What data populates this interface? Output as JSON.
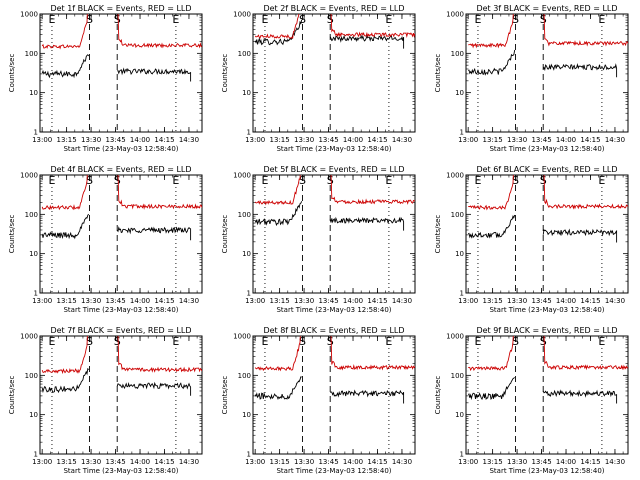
{
  "chart_data": [
    {
      "type": "line",
      "title": "Det 1f BLACK = Events, RED = LLD",
      "xlabel": "Start Time (23-May-03 12:58:40)",
      "ylabel": "Counts/sec",
      "yscale": "log",
      "ylim": [
        1,
        1000
      ],
      "xlim": [
        "12:58:40",
        "14:38:00"
      ],
      "x_ticks": [
        "13:00",
        "13:15",
        "13:30",
        "13:45",
        "14:00",
        "14:15",
        "14:30"
      ],
      "y_ticks": [
        "1",
        "10",
        "100",
        "1000"
      ],
      "markers": [
        {
          "label": "E",
          "time": "13:06"
        },
        {
          "label": "S",
          "time": "13:29"
        },
        {
          "label": "S",
          "time": "13:46"
        },
        {
          "label": "E",
          "time": "14:22"
        }
      ],
      "series": [
        {
          "name": "Events",
          "color": "#000000",
          "pre_level": 30,
          "post_level": 35,
          "rise_start": "13:21",
          "end": "14:31"
        },
        {
          "name": "LLD",
          "color": "#cc0000",
          "pre_level": 150,
          "post_level": 160,
          "end": "14:38"
        }
      ]
    },
    {
      "type": "line",
      "title": "Det 2f BLACK = Events, RED = LLD",
      "xlabel": "Start Time (23-May-03 12:58:40)",
      "ylabel": "Counts/sec",
      "yscale": "log",
      "ylim": [
        1,
        1000
      ],
      "xlim": [
        "12:58:40",
        "14:38:00"
      ],
      "x_ticks": [
        "13:00",
        "13:15",
        "13:30",
        "13:45",
        "14:00",
        "14:15",
        "14:30"
      ],
      "y_ticks": [
        "1",
        "10",
        "100",
        "1000"
      ],
      "markers": [
        {
          "label": "E",
          "time": "13:06"
        },
        {
          "label": "S",
          "time": "13:29"
        },
        {
          "label": "S",
          "time": "13:46"
        },
        {
          "label": "E",
          "time": "14:22"
        }
      ],
      "series": [
        {
          "name": "Events",
          "color": "#000000",
          "pre_level": 200,
          "post_level": 240,
          "rise_start": "13:21",
          "end": "14:31"
        },
        {
          "name": "LLD",
          "color": "#cc0000",
          "pre_level": 270,
          "post_level": 300,
          "end": "14:38"
        }
      ]
    },
    {
      "type": "line",
      "title": "Det 3f BLACK = Events, RED = LLD",
      "xlabel": "Start Time (23-May-03 12:58:40)",
      "ylabel": "Counts/sec",
      "yscale": "log",
      "ylim": [
        1,
        1000
      ],
      "xlim": [
        "12:58:40",
        "14:38:00"
      ],
      "x_ticks": [
        "13:00",
        "13:15",
        "13:30",
        "13:45",
        "14:00",
        "14:15",
        "14:30"
      ],
      "y_ticks": [
        "1",
        "10",
        "100",
        "1000"
      ],
      "markers": [
        {
          "label": "E",
          "time": "13:06"
        },
        {
          "label": "S",
          "time": "13:29"
        },
        {
          "label": "S",
          "time": "13:46"
        },
        {
          "label": "E",
          "time": "14:22"
        }
      ],
      "series": [
        {
          "name": "Events",
          "color": "#000000",
          "pre_level": 35,
          "post_level": 45,
          "rise_start": "13:21",
          "end": "14:31"
        },
        {
          "name": "LLD",
          "color": "#cc0000",
          "pre_level": 160,
          "post_level": 180,
          "end": "14:38"
        }
      ]
    },
    {
      "type": "line",
      "title": "Det 4f BLACK = Events, RED = LLD",
      "xlabel": "Start Time (23-May-03 12:58:40)",
      "ylabel": "Counts/sec",
      "yscale": "log",
      "ylim": [
        1,
        1000
      ],
      "xlim": [
        "12:58:40",
        "14:38:00"
      ],
      "x_ticks": [
        "13:00",
        "13:15",
        "13:30",
        "13:45",
        "14:00",
        "14:15",
        "14:30"
      ],
      "y_ticks": [
        "1",
        "10",
        "100",
        "1000"
      ],
      "markers": [
        {
          "label": "E",
          "time": "13:06"
        },
        {
          "label": "S",
          "time": "13:29"
        },
        {
          "label": "S",
          "time": "13:46"
        },
        {
          "label": "E",
          "time": "14:22"
        }
      ],
      "series": [
        {
          "name": "Events",
          "color": "#000000",
          "pre_level": 30,
          "post_level": 40,
          "rise_start": "13:21",
          "end": "14:31"
        },
        {
          "name": "LLD",
          "color": "#cc0000",
          "pre_level": 150,
          "post_level": 160,
          "end": "14:38"
        }
      ]
    },
    {
      "type": "line",
      "title": "Det 5f BLACK = Events, RED = LLD",
      "xlabel": "Start Time (23-May-03 12:58:40)",
      "ylabel": "Counts/sec",
      "yscale": "log",
      "ylim": [
        1,
        1000
      ],
      "xlim": [
        "12:58:40",
        "14:38:00"
      ],
      "x_ticks": [
        "13:00",
        "13:15",
        "13:30",
        "13:45",
        "14:00",
        "14:15",
        "14:30"
      ],
      "y_ticks": [
        "1",
        "10",
        "100",
        "1000"
      ],
      "markers": [
        {
          "label": "E",
          "time": "13:06"
        },
        {
          "label": "S",
          "time": "13:29"
        },
        {
          "label": "S",
          "time": "13:46"
        },
        {
          "label": "E",
          "time": "14:22"
        }
      ],
      "series": [
        {
          "name": "Events",
          "color": "#000000",
          "pre_level": 65,
          "post_level": 70,
          "rise_start": "13:21",
          "end": "14:31"
        },
        {
          "name": "LLD",
          "color": "#cc0000",
          "pre_level": 200,
          "post_level": 210,
          "end": "14:38"
        }
      ]
    },
    {
      "type": "line",
      "title": "Det 6f BLACK = Events, RED = LLD",
      "xlabel": "Start Time (23-May-03 12:58:40)",
      "ylabel": "Counts/sec",
      "yscale": "log",
      "ylim": [
        1,
        1000
      ],
      "xlim": [
        "12:58:40",
        "14:38:00"
      ],
      "x_ticks": [
        "13:00",
        "13:15",
        "13:30",
        "13:45",
        "14:00",
        "14:15",
        "14:30"
      ],
      "y_ticks": [
        "1",
        "10",
        "100",
        "1000"
      ],
      "markers": [
        {
          "label": "E",
          "time": "13:06"
        },
        {
          "label": "S",
          "time": "13:29"
        },
        {
          "label": "S",
          "time": "13:46"
        },
        {
          "label": "E",
          "time": "14:22"
        }
      ],
      "series": [
        {
          "name": "Events",
          "color": "#000000",
          "pre_level": 30,
          "post_level": 35,
          "rise_start": "13:21",
          "end": "14:31"
        },
        {
          "name": "LLD",
          "color": "#cc0000",
          "pre_level": 150,
          "post_level": 160,
          "end": "14:38"
        }
      ]
    },
    {
      "type": "line",
      "title": "Det 7f BLACK = Events, RED = LLD",
      "xlabel": "Start Time (23-May-03 12:58:40)",
      "ylabel": "Counts/sec",
      "yscale": "log",
      "ylim": [
        1,
        1000
      ],
      "xlim": [
        "12:58:40",
        "14:38:00"
      ],
      "x_ticks": [
        "13:00",
        "13:15",
        "13:30",
        "13:45",
        "14:00",
        "14:15",
        "14:30"
      ],
      "y_ticks": [
        "1",
        "10",
        "100",
        "1000"
      ],
      "markers": [
        {
          "label": "E",
          "time": "13:06"
        },
        {
          "label": "S",
          "time": "13:29"
        },
        {
          "label": "S",
          "time": "13:46"
        },
        {
          "label": "E",
          "time": "14:22"
        }
      ],
      "series": [
        {
          "name": "Events",
          "color": "#000000",
          "pre_level": 45,
          "post_level": 55,
          "rise_start": "13:21",
          "end": "14:31"
        },
        {
          "name": "LLD",
          "color": "#cc0000",
          "pre_level": 130,
          "post_level": 140,
          "end": "14:38"
        }
      ]
    },
    {
      "type": "line",
      "title": "Det 8f BLACK = Events, RED = LLD",
      "xlabel": "Start Time (23-May-03 12:58:40)",
      "ylabel": "Counts/sec",
      "yscale": "log",
      "ylim": [
        1,
        1000
      ],
      "xlim": [
        "12:58:40",
        "14:38:00"
      ],
      "x_ticks": [
        "13:00",
        "13:15",
        "13:30",
        "13:45",
        "14:00",
        "14:15",
        "14:30"
      ],
      "y_ticks": [
        "1",
        "10",
        "100",
        "1000"
      ],
      "markers": [
        {
          "label": "E",
          "time": "13:06"
        },
        {
          "label": "S",
          "time": "13:29"
        },
        {
          "label": "S",
          "time": "13:46"
        },
        {
          "label": "E",
          "time": "14:22"
        }
      ],
      "series": [
        {
          "name": "Events",
          "color": "#000000",
          "pre_level": 30,
          "post_level": 35,
          "rise_start": "13:21",
          "end": "14:31"
        },
        {
          "name": "LLD",
          "color": "#cc0000",
          "pre_level": 150,
          "post_level": 160,
          "end": "14:38"
        }
      ]
    },
    {
      "type": "line",
      "title": "Det 9f BLACK = Events, RED = LLD",
      "xlabel": "Start Time (23-May-03 12:58:40)",
      "ylabel": "Counts/sec",
      "yscale": "log",
      "ylim": [
        1,
        1000
      ],
      "xlim": [
        "12:58:40",
        "14:38:00"
      ],
      "x_ticks": [
        "13:00",
        "13:15",
        "13:30",
        "13:45",
        "14:00",
        "14:15",
        "14:30"
      ],
      "y_ticks": [
        "1",
        "10",
        "100",
        "1000"
      ],
      "markers": [
        {
          "label": "E",
          "time": "13:06"
        },
        {
          "label": "S",
          "time": "13:29"
        },
        {
          "label": "S",
          "time": "13:46"
        },
        {
          "label": "E",
          "time": "14:22"
        }
      ],
      "series": [
        {
          "name": "Events",
          "color": "#000000",
          "pre_level": 30,
          "post_level": 35,
          "rise_start": "13:21",
          "end": "14:31"
        },
        {
          "name": "LLD",
          "color": "#cc0000",
          "pre_level": 150,
          "post_level": 160,
          "end": "14:38"
        }
      ]
    }
  ]
}
